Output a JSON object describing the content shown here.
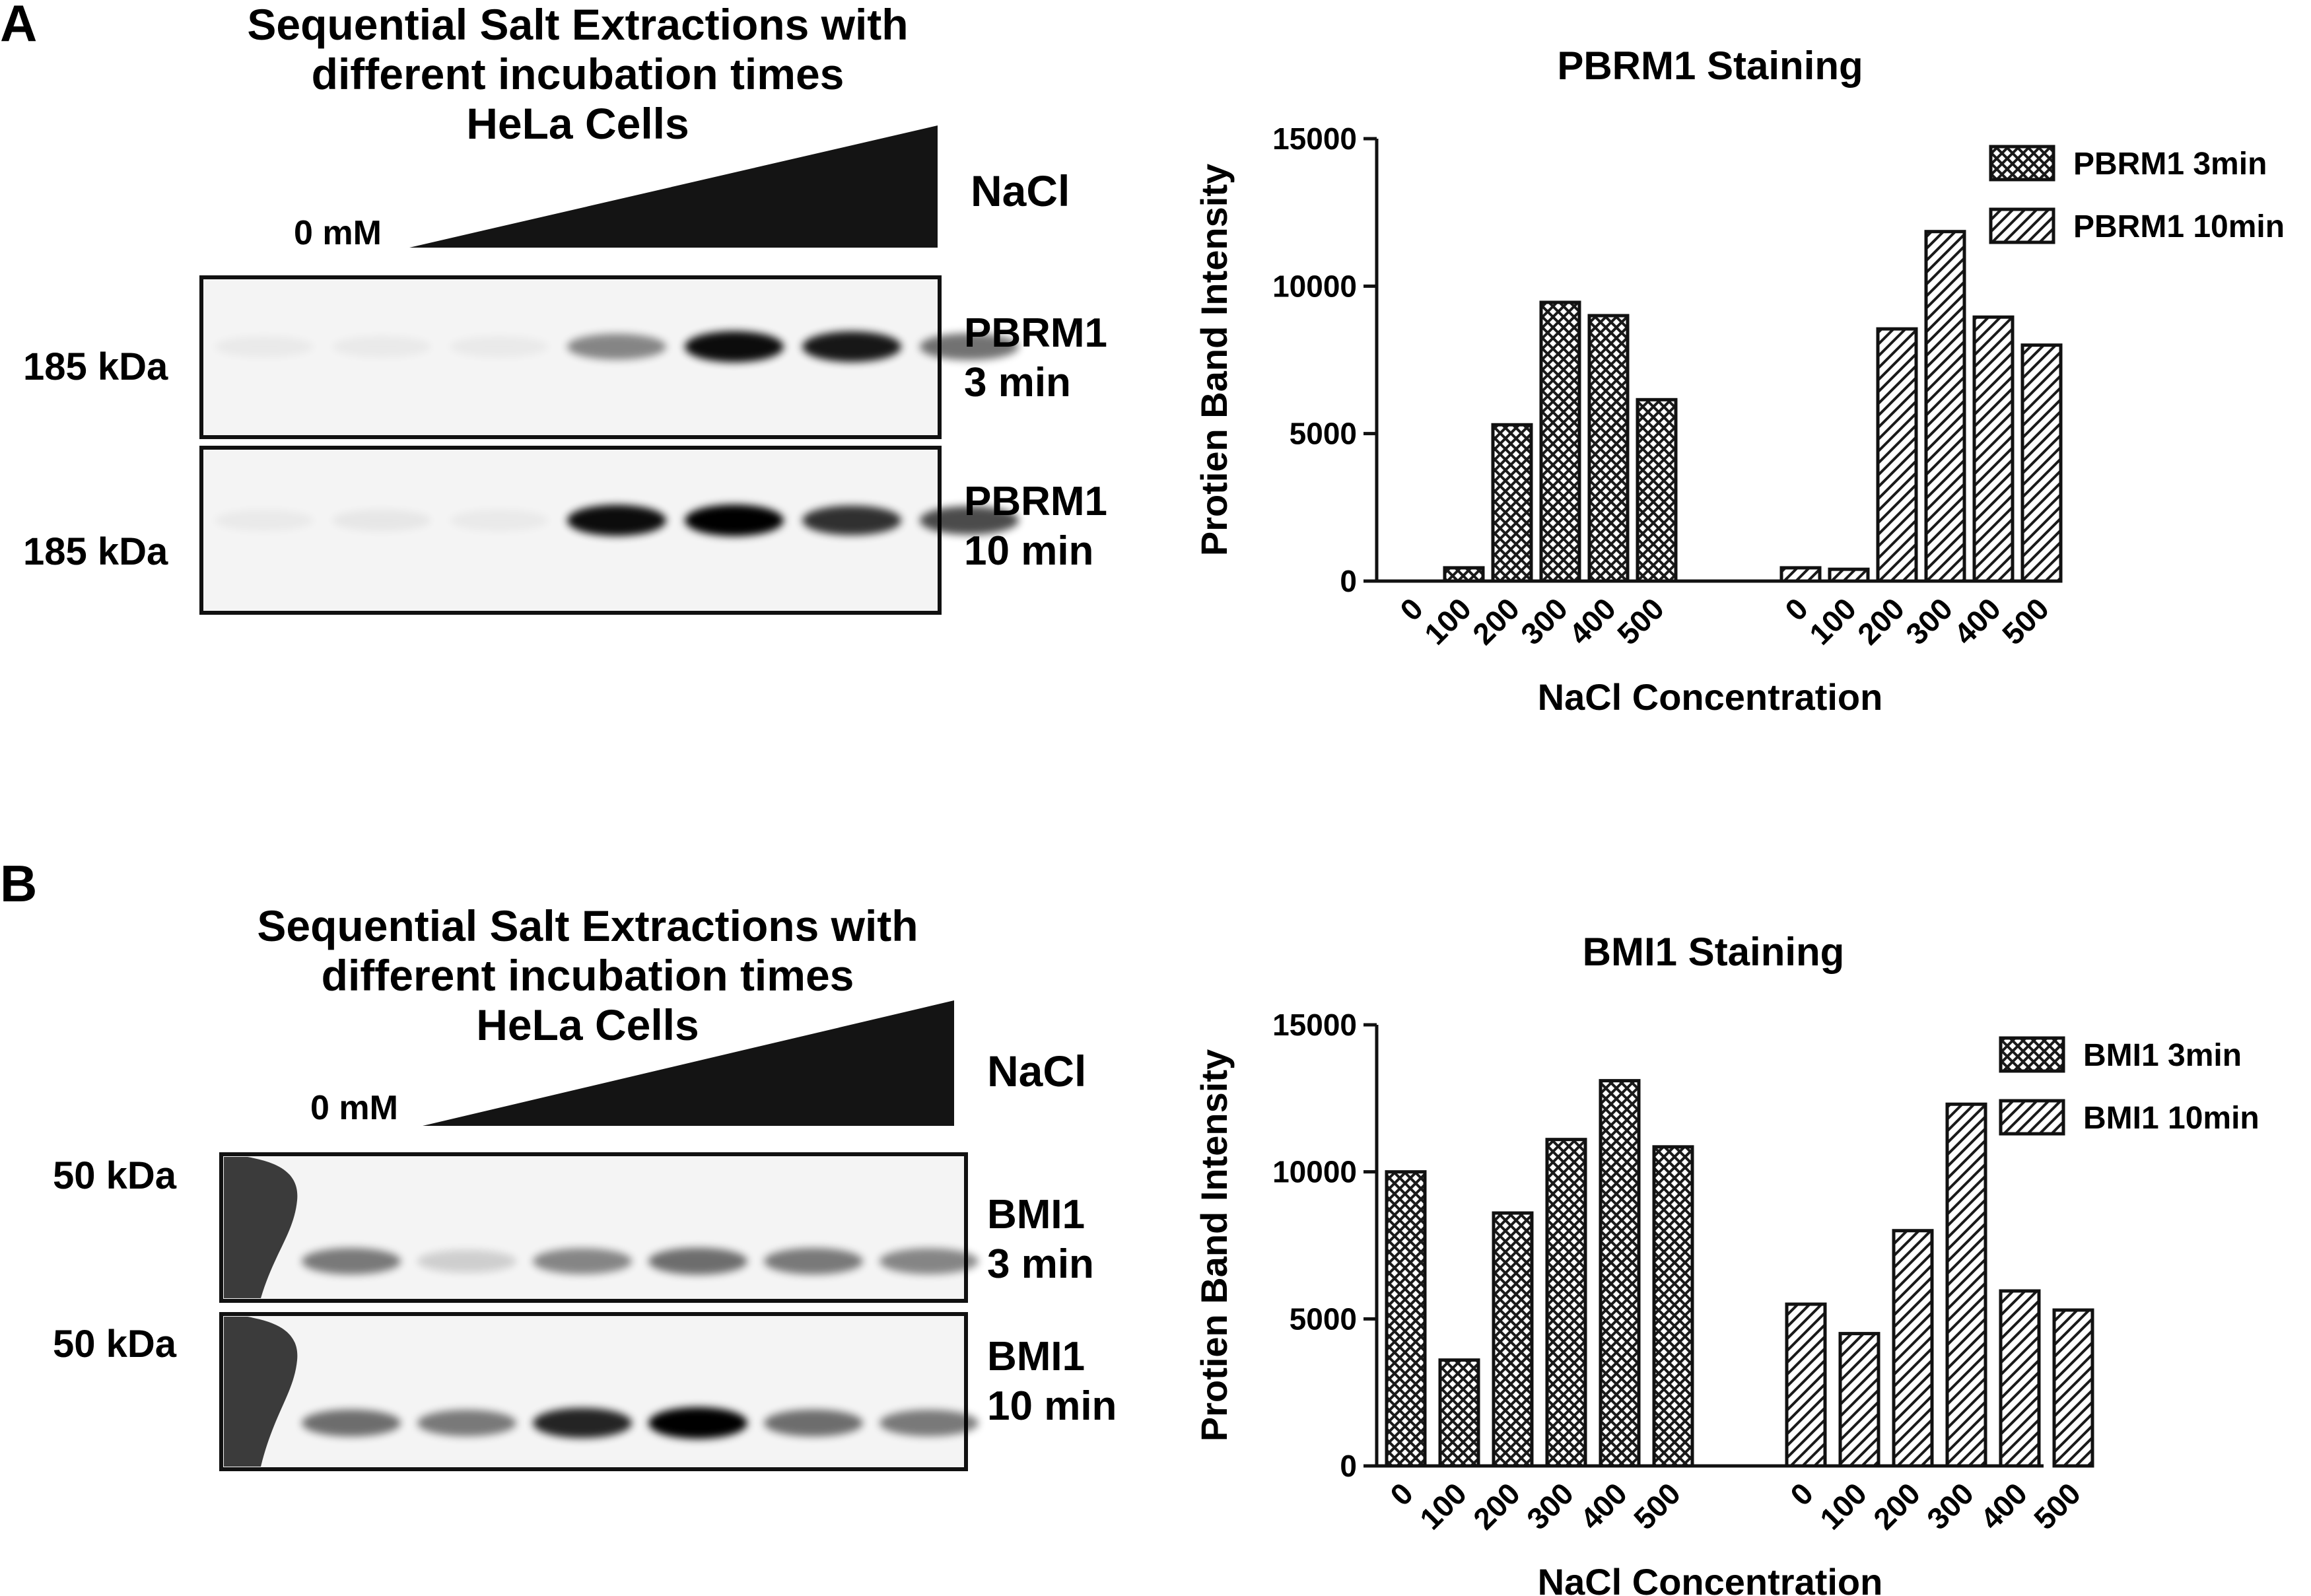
{
  "panels": [
    {
      "letter": "A",
      "blot": {
        "title_lines": [
          "Sequential Salt Extractions with",
          "different incubation times",
          "HeLa Cells"
        ],
        "zero_label": "0 mM",
        "salt_label": "NaCl",
        "rows": [
          {
            "kda": "185 kDa",
            "label_line1": "PBRM1",
            "label_line2": "3 min",
            "band_intensity": [
              0,
              0.03,
              0.02,
              0.45,
              0.95,
              0.9,
              0.55
            ]
          },
          {
            "kda": "185 kDa",
            "label_line1": "PBRM1",
            "label_line2": "10 min",
            "band_intensity": [
              0,
              0.05,
              0.04,
              0.95,
              1.0,
              0.8,
              0.7
            ]
          }
        ]
      },
      "chart": {
        "type": "bar",
        "title": "PBRM1 Staining",
        "xlabel": "NaCl Concentration",
        "ylabel": "Protien Band Intensity",
        "ylim": [
          0,
          15000
        ],
        "yticks": [
          "0",
          "5000",
          "10000",
          "15000"
        ],
        "categories": [
          "0",
          "100",
          "200",
          "300",
          "400",
          "500"
        ],
        "series": [
          {
            "name": "PBRM1 3min",
            "pattern": "crosshatch",
            "values": [
              0,
              450,
              5300,
              9450,
              9000,
              6150
            ]
          },
          {
            "name": "PBRM1 10min",
            "pattern": "diagonal",
            "values": [
              450,
              400,
              8550,
              11850,
              8950,
              8000
            ]
          }
        ]
      }
    },
    {
      "letter": "B",
      "blot": {
        "title_lines": [
          "Sequential Salt Extractions with",
          "different incubation times",
          "HeLa Cells"
        ],
        "zero_label": "0 mM",
        "salt_label": "NaCl",
        "rows": [
          {
            "kda": "50 kDa",
            "label_line1": "BMI1",
            "label_line2": "3 min",
            "band_intensity": [
              0.5,
              0.15,
              0.45,
              0.55,
              0.5,
              0.45
            ]
          },
          {
            "kda": "50 kDa",
            "label_line1": "BMI1",
            "label_line2": "10 min",
            "band_intensity": [
              0.55,
              0.5,
              0.85,
              1.0,
              0.55,
              0.5
            ]
          }
        ]
      },
      "chart": {
        "type": "bar",
        "title": "BMI1 Staining",
        "xlabel": "NaCl Concentration",
        "ylabel": "Protien Band Intensity",
        "ylim": [
          0,
          15000
        ],
        "yticks": [
          "0",
          "5000",
          "10000",
          "15000"
        ],
        "categories": [
          "0",
          "100",
          "200",
          "300",
          "400",
          "500"
        ],
        "series": [
          {
            "name": "BMI1 3min",
            "pattern": "crosshatch",
            "values": [
              10000,
              3600,
              8600,
              11100,
              13100,
              10850
            ]
          },
          {
            "name": "BMI1 10min",
            "pattern": "diagonal",
            "values": [
              5500,
              4500,
              8000,
              12300,
              5950,
              5300
            ]
          }
        ]
      }
    }
  ]
}
